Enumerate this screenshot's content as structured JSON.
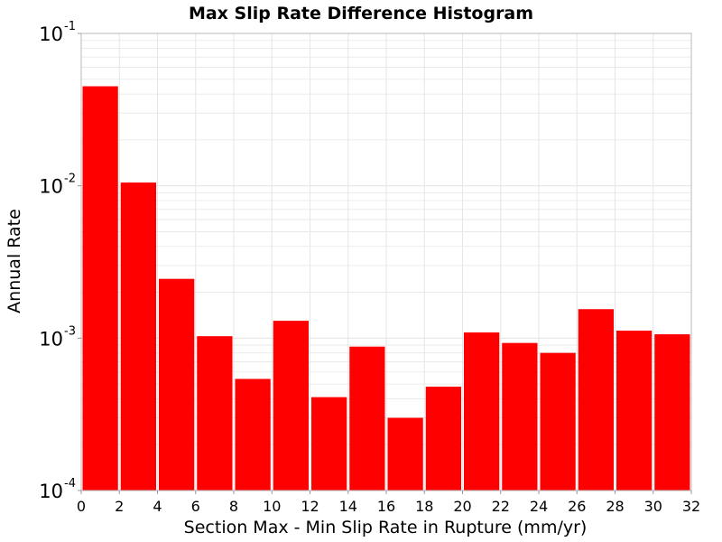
{
  "chart_data": {
    "type": "bar",
    "title": "Max Slip Rate Difference Histogram",
    "xlabel": "Section Max - Min Slip Rate in Rupture (mm/yr)",
    "ylabel": "Annual Rate",
    "xlim": [
      0,
      32
    ],
    "ylim": [
      0.0001,
      0.1
    ],
    "y_scale": "log",
    "grid": true,
    "bin_width": 2,
    "x_ticks": [
      "0",
      "2",
      "4",
      "6",
      "8",
      "10",
      "12",
      "14",
      "16",
      "18",
      "20",
      "22",
      "24",
      "26",
      "28",
      "30",
      "32"
    ],
    "y_ticks": [
      {
        "base": "10",
        "exp": "-4",
        "value": 0.0001
      },
      {
        "base": "10",
        "exp": "-3",
        "value": 0.001
      },
      {
        "base": "10",
        "exp": "-2",
        "value": 0.01
      },
      {
        "base": "10",
        "exp": "-1",
        "value": 0.1
      }
    ],
    "bins": [
      {
        "x_start": 0,
        "x_end": 2,
        "value": 0.045
      },
      {
        "x_start": 2,
        "x_end": 4,
        "value": 0.0105
      },
      {
        "x_start": 4,
        "x_end": 6,
        "value": 0.00245
      },
      {
        "x_start": 6,
        "x_end": 8,
        "value": 0.00103
      },
      {
        "x_start": 8,
        "x_end": 10,
        "value": 0.00054
      },
      {
        "x_start": 10,
        "x_end": 12,
        "value": 0.0013
      },
      {
        "x_start": 12,
        "x_end": 14,
        "value": 0.00041
      },
      {
        "x_start": 14,
        "x_end": 16,
        "value": 0.00088
      },
      {
        "x_start": 16,
        "x_end": 18,
        "value": 0.0003
      },
      {
        "x_start": 18,
        "x_end": 20,
        "value": 0.00048
      },
      {
        "x_start": 20,
        "x_end": 22,
        "value": 0.00109
      },
      {
        "x_start": 22,
        "x_end": 24,
        "value": 0.00093
      },
      {
        "x_start": 24,
        "x_end": 26,
        "value": 0.0008
      },
      {
        "x_start": 26,
        "x_end": 28,
        "value": 0.00155
      },
      {
        "x_start": 28,
        "x_end": 30,
        "value": 0.00112
      },
      {
        "x_start": 30,
        "x_end": 32,
        "value": 0.00106
      }
    ],
    "colors": {
      "bar": "#ff0000",
      "plot_border": "#b8b8b8",
      "grid": "#e6e6e6",
      "background": "#ffffff"
    }
  }
}
